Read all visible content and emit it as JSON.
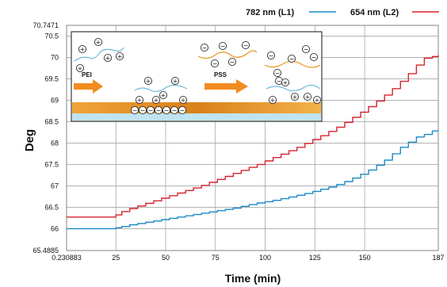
{
  "chart_data": {
    "type": "line",
    "xlabel": "Time (min)",
    "ylabel": "Deg",
    "xlim": [
      0.230883,
      187
    ],
    "ylim": [
      65.4885,
      70.7471
    ],
    "x_tick_labels": [
      "0.230883",
      "25",
      "50",
      "75",
      "100",
      "125",
      "150",
      "187"
    ],
    "x_tick_values": [
      0.230883,
      25,
      50,
      75,
      100,
      125,
      150,
      187
    ],
    "y_tick_labels": [
      "65.4885",
      "66",
      "66.5",
      "67",
      "67.5",
      "68",
      "68.5",
      "69",
      "69.5",
      "70",
      "70.5",
      "70.7471"
    ],
    "y_tick_values": [
      65.4885,
      66,
      66.5,
      67,
      67.5,
      68,
      68.5,
      69,
      69.5,
      70,
      70.5,
      70.7471
    ],
    "grid": true,
    "legend_position": "top-right",
    "series": [
      {
        "name": "782 nm (L1)",
        "color": "#1a8ac6",
        "x": [
          0.23,
          20,
          25,
          28,
          32,
          36,
          40,
          44,
          48,
          52,
          56,
          60,
          64,
          68,
          72,
          76,
          80,
          84,
          88,
          92,
          96,
          100,
          104,
          108,
          112,
          116,
          120,
          124,
          128,
          132,
          136,
          140,
          144,
          148,
          152,
          156,
          160,
          164,
          168,
          172,
          176,
          180,
          184,
          187
        ],
        "y": [
          66.0,
          66.0,
          66.02,
          66.05,
          66.09,
          66.12,
          66.15,
          66.18,
          66.21,
          66.24,
          66.27,
          66.3,
          66.33,
          66.36,
          66.39,
          66.42,
          66.45,
          66.48,
          66.52,
          66.56,
          66.6,
          66.63,
          66.66,
          66.7,
          66.74,
          66.78,
          66.82,
          66.87,
          66.92,
          66.97,
          67.03,
          67.1,
          67.18,
          67.27,
          67.37,
          67.48,
          67.6,
          67.75,
          67.9,
          68.02,
          68.14,
          68.2,
          68.28,
          68.3
        ]
      },
      {
        "name": "654 nm (L2)",
        "color": "#d7232e",
        "x": [
          0.23,
          20,
          25,
          28,
          32,
          36,
          40,
          44,
          48,
          52,
          56,
          60,
          64,
          68,
          72,
          76,
          80,
          84,
          88,
          92,
          96,
          100,
          104,
          108,
          112,
          116,
          120,
          124,
          128,
          132,
          136,
          140,
          144,
          148,
          152,
          156,
          160,
          164,
          168,
          172,
          176,
          180,
          184,
          187
        ],
        "y": [
          66.27,
          66.27,
          66.32,
          66.4,
          66.47,
          66.53,
          66.59,
          66.65,
          66.71,
          66.77,
          66.83,
          66.89,
          66.95,
          67.01,
          67.08,
          67.15,
          67.22,
          67.29,
          67.36,
          67.43,
          67.5,
          67.58,
          67.66,
          67.74,
          67.82,
          67.9,
          67.99,
          68.08,
          68.17,
          68.27,
          68.37,
          68.48,
          68.6,
          68.72,
          68.85,
          68.98,
          69.12,
          69.27,
          69.44,
          69.62,
          69.82,
          69.98,
          70.02,
          70.05
        ]
      }
    ]
  },
  "inset": {
    "label_pei": "PEI",
    "label_pss": "PSS",
    "plus_sign": "+",
    "minus_sign": "−"
  },
  "colors": {
    "grid": "#9a9a9a",
    "substrate_orange": "#e8951c",
    "substrate_blue": "#bfe3ef",
    "arrow_orange": "#f28c1e",
    "chain_blue": "#69b7dc",
    "chain_orange": "#e8951c"
  }
}
